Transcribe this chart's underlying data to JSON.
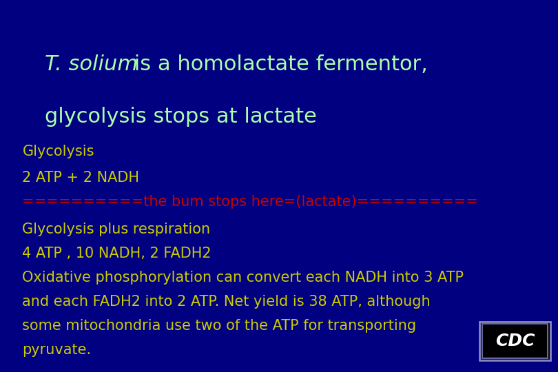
{
  "bg_color": "#000080",
  "title_italic": "T. solium",
  "title_rest_line1": " is a homolactate fermentor,",
  "title_line2": "glycolysis stops at lactate",
  "title_color": "#aaffaa",
  "line1": "Glycolysis",
  "line2": "2 ATP + 2 NADH",
  "line3": "==========the bum stops here=(lactate)==========",
  "line4": "Glycolysis plus respiration",
  "line5": "4 ATP , 10 NADH, 2 FADH2",
  "line6a": "Oxidative phosphorylation can convert each NADH into 3 ATP",
  "line6b": "and each FADH2 into 2 ATP. Net yield is 38 ATP, although",
  "line6c": "some mitochondria use two of the ATP for transporting",
  "line6d": "pyruvate.",
  "body_color": "#cccc00",
  "line3_color": "#cc0000",
  "cdc_text": "CDC",
  "cdc_bg": "#000000",
  "cdc_border_outer": "#8888bb",
  "cdc_border_inner": "#6666aa"
}
